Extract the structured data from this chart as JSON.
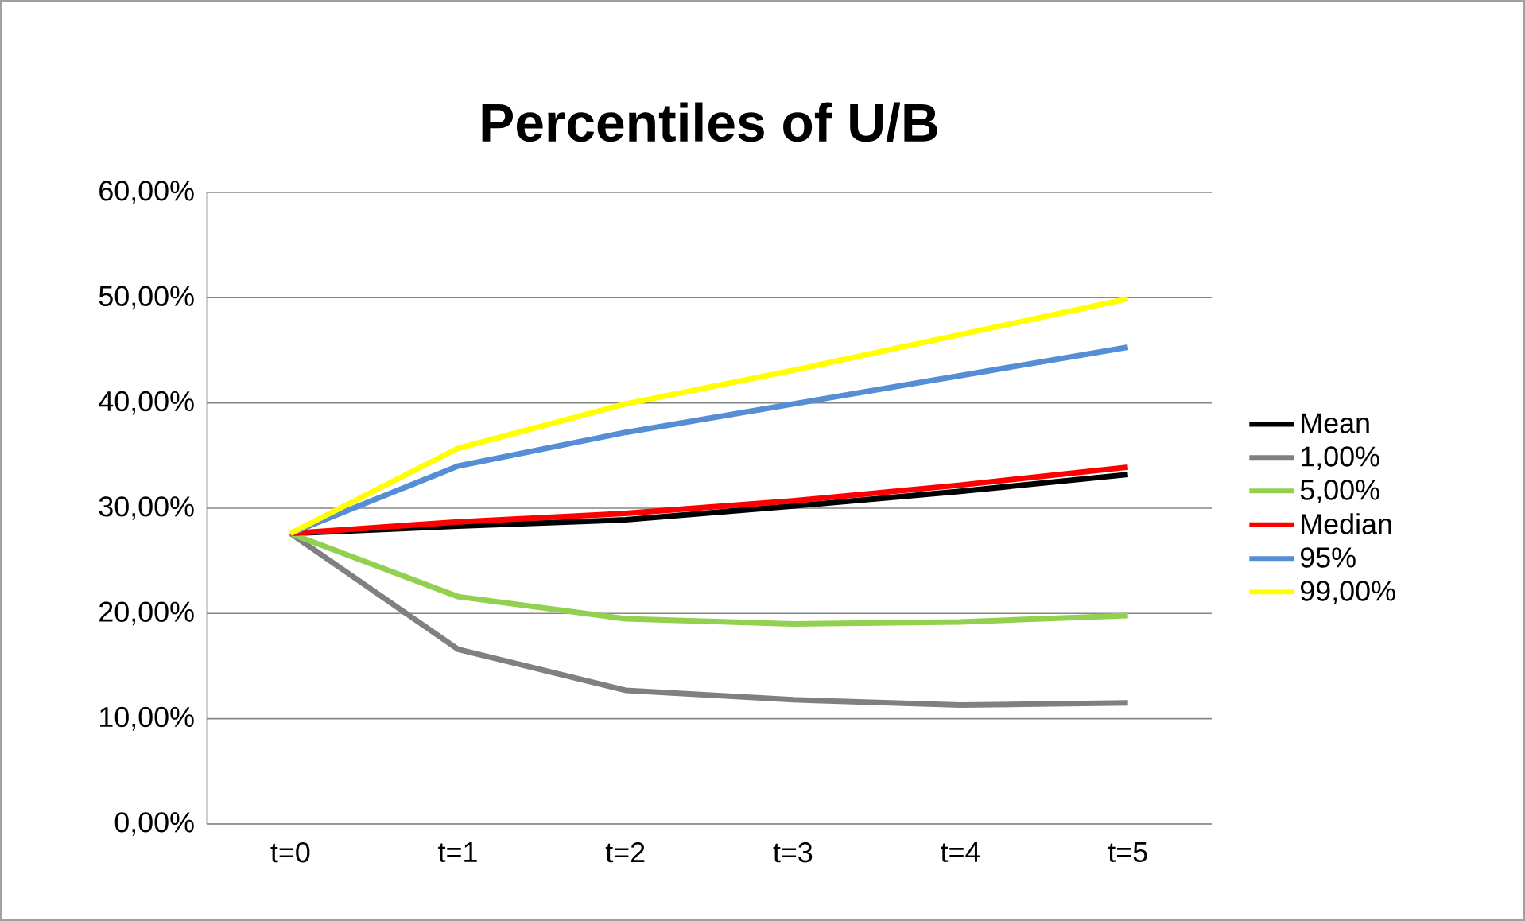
{
  "chart_data": {
    "type": "line",
    "title": "Percentiles of U/B",
    "categories": [
      "t=0",
      "t=1",
      "t=2",
      "t=3",
      "t=4",
      "t=5"
    ],
    "series": [
      {
        "name": "Mean",
        "color": "#000000",
        "values": [
          27.6,
          28.3,
          28.9,
          30.2,
          31.6,
          33.2
        ]
      },
      {
        "name": "1,00%",
        "color": "#808080",
        "values": [
          27.6,
          16.6,
          12.7,
          11.8,
          11.3,
          11.5
        ]
      },
      {
        "name": "5,00%",
        "color": "#92d050",
        "values": [
          27.6,
          21.6,
          19.5,
          19.0,
          19.2,
          19.8
        ]
      },
      {
        "name": "Median",
        "color": "#ff0000",
        "values": [
          27.6,
          28.7,
          29.5,
          30.7,
          32.2,
          33.9
        ]
      },
      {
        "name": "95%",
        "color": "#558ed5",
        "values": [
          27.6,
          34.0,
          37.2,
          39.9,
          42.6,
          45.3
        ]
      },
      {
        "name": "99,00%",
        "color": "#ffff00",
        "values": [
          27.6,
          35.7,
          39.9,
          43.1,
          46.5,
          49.9
        ]
      }
    ],
    "ylim": [
      0,
      60
    ],
    "yticks": [
      {
        "value": 0,
        "label": "0,00%"
      },
      {
        "value": 10,
        "label": "10,00%"
      },
      {
        "value": 20,
        "label": "20,00%"
      },
      {
        "value": 30,
        "label": "30,00%"
      },
      {
        "value": 40,
        "label": "40,00%"
      },
      {
        "value": 50,
        "label": "50,00%"
      },
      {
        "value": 60,
        "label": "60,00%"
      }
    ],
    "grid": "y",
    "legend": "right",
    "marker": "none",
    "line_style": "solid"
  }
}
